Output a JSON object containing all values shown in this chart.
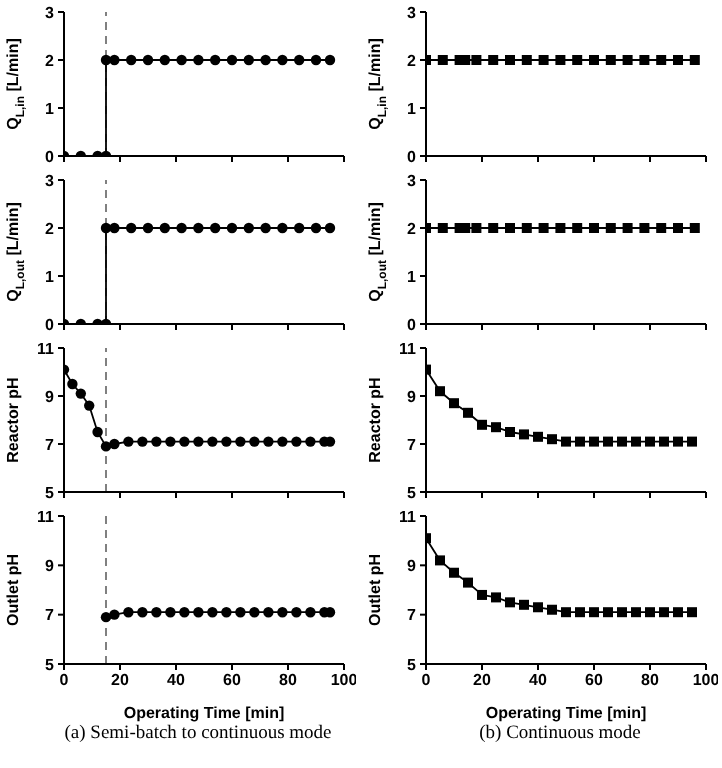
{
  "chart_data": [
    {
      "type": "line",
      "ylabel": "Q$_{L,in}$ [L/min]",
      "x": [
        0,
        6,
        12,
        15,
        15,
        18,
        24,
        30,
        36,
        42,
        48,
        54,
        60,
        66,
        72,
        78,
        84,
        90,
        95
      ],
      "series": [
        {
          "color": "#000000",
          "values": [
            0,
            0,
            0,
            0,
            2,
            2,
            2,
            2,
            2,
            2,
            2,
            2,
            2,
            2,
            2,
            2,
            2,
            2,
            2
          ]
        }
      ],
      "xlim": [
        0,
        100
      ],
      "xticks": [
        0,
        20,
        40,
        60,
        80,
        100
      ],
      "ylim": [
        0,
        3
      ],
      "yticks": [
        0,
        1,
        2,
        3
      ],
      "marker": "circle",
      "tick_labels": "y",
      "ref_lines": [
        {
          "axis": "x",
          "value": 15,
          "line_style": "dashed",
          "color": "#808080"
        }
      ]
    },
    {
      "type": "line",
      "ylabel": "Q$_{L,in}$ [L/min]",
      "x": [
        0,
        6,
        12,
        14,
        18,
        24,
        30,
        36,
        42,
        48,
        54,
        60,
        66,
        72,
        78,
        84,
        90,
        96
      ],
      "series": [
        {
          "color": "#000000",
          "values": [
            2,
            2,
            2,
            2,
            2,
            2,
            2,
            2,
            2,
            2,
            2,
            2,
            2,
            2,
            2,
            2,
            2,
            2
          ]
        }
      ],
      "xlim": [
        0,
        100
      ],
      "xticks": [
        0,
        20,
        40,
        60,
        80,
        100
      ],
      "ylim": [
        0,
        3
      ],
      "yticks": [
        0,
        1,
        2,
        3
      ],
      "marker": "square",
      "tick_labels": "y"
    },
    {
      "type": "line",
      "ylabel": "Q$_{L,out}$ [L/min]",
      "x": [
        0,
        6,
        12,
        15,
        15,
        18,
        24,
        30,
        36,
        42,
        48,
        54,
        60,
        66,
        72,
        78,
        84,
        90,
        95
      ],
      "series": [
        {
          "color": "#000000",
          "values": [
            0,
            0,
            0,
            0,
            2,
            2,
            2,
            2,
            2,
            2,
            2,
            2,
            2,
            2,
            2,
            2,
            2,
            2,
            2
          ]
        }
      ],
      "xlim": [
        0,
        100
      ],
      "xticks": [
        0,
        20,
        40,
        60,
        80,
        100
      ],
      "ylim": [
        0,
        3
      ],
      "yticks": [
        0,
        1,
        2,
        3
      ],
      "marker": "circle",
      "tick_labels": "y",
      "ref_lines": [
        {
          "axis": "x",
          "value": 15,
          "line_style": "dashed",
          "color": "#808080"
        }
      ]
    },
    {
      "type": "line",
      "ylabel": "Q$_{L,out}$ [L/min]",
      "x": [
        0,
        6,
        12,
        14,
        18,
        24,
        30,
        36,
        42,
        48,
        54,
        60,
        66,
        72,
        78,
        84,
        90,
        96
      ],
      "series": [
        {
          "color": "#000000",
          "values": [
            2,
            2,
            2,
            2,
            2,
            2,
            2,
            2,
            2,
            2,
            2,
            2,
            2,
            2,
            2,
            2,
            2,
            2
          ]
        }
      ],
      "xlim": [
        0,
        100
      ],
      "xticks": [
        0,
        20,
        40,
        60,
        80,
        100
      ],
      "ylim": [
        0,
        3
      ],
      "yticks": [
        0,
        1,
        2,
        3
      ],
      "marker": "square",
      "tick_labels": "y"
    },
    {
      "type": "line",
      "ylabel": "Reactor pH",
      "x": [
        0,
        3,
        6,
        9,
        12,
        15,
        18,
        23,
        28,
        33,
        38,
        43,
        48,
        53,
        58,
        63,
        68,
        73,
        78,
        83,
        88,
        93,
        95
      ],
      "series": [
        {
          "color": "#000000",
          "values": [
            10.1,
            9.5,
            9.1,
            8.6,
            7.5,
            6.9,
            7.0,
            7.1,
            7.1,
            7.1,
            7.1,
            7.1,
            7.1,
            7.1,
            7.1,
            7.1,
            7.1,
            7.1,
            7.1,
            7.1,
            7.1,
            7.1,
            7.1
          ]
        }
      ],
      "xlim": [
        0,
        100
      ],
      "xticks": [
        0,
        20,
        40,
        60,
        80,
        100
      ],
      "ylim": [
        5,
        11
      ],
      "yticks": [
        5,
        7,
        9,
        11
      ],
      "marker": "circle",
      "tick_labels": "y",
      "ref_lines": [
        {
          "axis": "x",
          "value": 15,
          "line_style": "dashed",
          "color": "#808080"
        }
      ]
    },
    {
      "type": "line",
      "ylabel": "Reactor pH",
      "x": [
        0,
        5,
        10,
        15,
        20,
        25,
        30,
        35,
        40,
        45,
        50,
        55,
        60,
        65,
        70,
        75,
        80,
        85,
        90,
        95
      ],
      "series": [
        {
          "color": "#000000",
          "values": [
            10.1,
            9.2,
            8.7,
            8.3,
            7.8,
            7.7,
            7.5,
            7.4,
            7.3,
            7.2,
            7.1,
            7.1,
            7.1,
            7.1,
            7.1,
            7.1,
            7.1,
            7.1,
            7.1,
            7.1
          ]
        }
      ],
      "xlim": [
        0,
        100
      ],
      "xticks": [
        0,
        20,
        40,
        60,
        80,
        100
      ],
      "ylim": [
        5,
        11
      ],
      "yticks": [
        5,
        7,
        9,
        11
      ],
      "marker": "square",
      "tick_labels": "y"
    },
    {
      "type": "line",
      "ylabel": "Outlet pH",
      "xlabel": "Operating Time [min]",
      "annotations": [
        "(a) Semi-batch to continuous mode"
      ],
      "x": [
        15,
        18,
        23,
        28,
        33,
        38,
        43,
        48,
        53,
        58,
        63,
        68,
        73,
        78,
        83,
        88,
        93,
        95
      ],
      "series": [
        {
          "color": "#000000",
          "values": [
            6.9,
            7.0,
            7.1,
            7.1,
            7.1,
            7.1,
            7.1,
            7.1,
            7.1,
            7.1,
            7.1,
            7.1,
            7.1,
            7.1,
            7.1,
            7.1,
            7.1,
            7.1
          ]
        }
      ],
      "xlim": [
        0,
        100
      ],
      "xticks": [
        0,
        20,
        40,
        60,
        80,
        100
      ],
      "ylim": [
        5,
        11
      ],
      "yticks": [
        5,
        7,
        9,
        11
      ],
      "marker": "circle",
      "ref_lines": [
        {
          "axis": "x",
          "value": 15,
          "line_style": "dashed",
          "color": "#808080"
        }
      ]
    },
    {
      "type": "line",
      "ylabel": "Outlet pH",
      "xlabel": "Operating Time [min]",
      "annotations": [
        "(b) Continuous mode"
      ],
      "x": [
        0,
        5,
        10,
        15,
        20,
        25,
        30,
        35,
        40,
        45,
        50,
        55,
        60,
        65,
        70,
        75,
        80,
        85,
        90,
        95
      ],
      "series": [
        {
          "color": "#000000",
          "values": [
            10.1,
            9.2,
            8.7,
            8.3,
            7.8,
            7.7,
            7.5,
            7.4,
            7.3,
            7.2,
            7.1,
            7.1,
            7.1,
            7.1,
            7.1,
            7.1,
            7.1,
            7.1,
            7.1,
            7.1
          ]
        }
      ],
      "xlim": [
        0,
        100
      ],
      "xticks": [
        0,
        20,
        40,
        60,
        80,
        100
      ],
      "ylim": [
        5,
        11
      ],
      "yticks": [
        5,
        7,
        9,
        11
      ],
      "marker": "square"
    }
  ]
}
